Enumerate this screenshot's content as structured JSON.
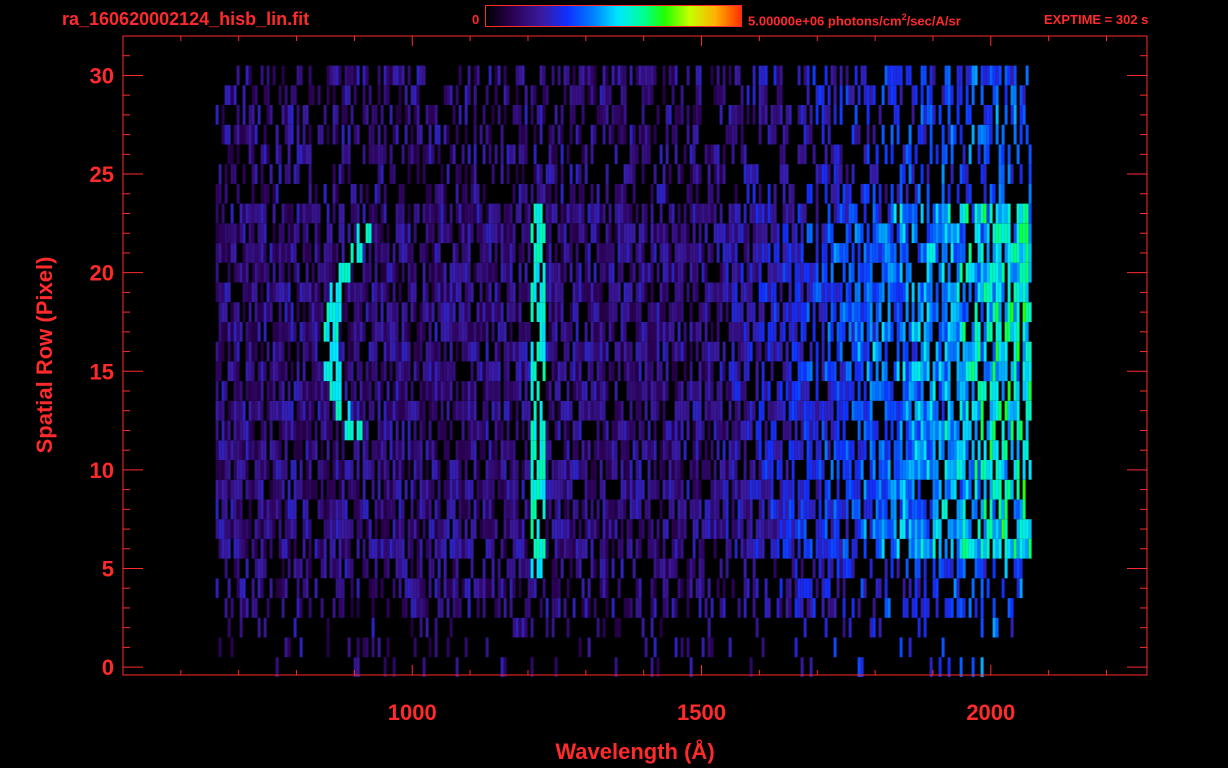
{
  "header": {
    "filename": "ra_160620002124_hisb_lin.fit",
    "colorbar_min": "0",
    "colorbar_max_prefix": "5.00000e+06 photons/cm",
    "colorbar_max_sup": "2",
    "colorbar_max_suffix": "/sec/A/sr",
    "exptime": "EXPTIME = 302 s"
  },
  "colors": {
    "axis": "#ff2a2a",
    "background": "#000000"
  },
  "chart_data": {
    "type": "heatmap",
    "title": "ra_160620002124_hisb_lin.fit",
    "xlabel": "Wavelength (Å)",
    "ylabel": "Spatial Row (Pixel)",
    "xlim": [
      500,
      2270
    ],
    "ylim": [
      -0.4,
      32
    ],
    "xticks": [
      1000,
      1500,
      2000
    ],
    "xtick_labels": [
      "1000",
      "1500",
      "2000"
    ],
    "yticks": [
      0,
      5,
      10,
      15,
      20,
      25,
      30
    ],
    "ytick_labels": [
      "0",
      "5",
      "10",
      "15",
      "20",
      "25",
      "30"
    ],
    "colorbar": {
      "min": 0,
      "max": 5000000,
      "units": "photons/cm^2/sec/A/sr",
      "colormap": "rainbow"
    },
    "grid": false,
    "data_extent": {
      "x": [
        660,
        2070
      ],
      "rows": [
        0,
        30
      ]
    },
    "features": [
      {
        "type": "curved arc emission",
        "x_center": 855,
        "rows": [
          12,
          22
        ],
        "peak_row": 16
      },
      {
        "type": "bright vertical emission line",
        "x": 1216,
        "rows": [
          5,
          24
        ]
      },
      {
        "type": "broad continuum brightening toward red",
        "x": [
          1700,
          2060
        ],
        "rows": [
          6,
          23
        ]
      }
    ]
  }
}
